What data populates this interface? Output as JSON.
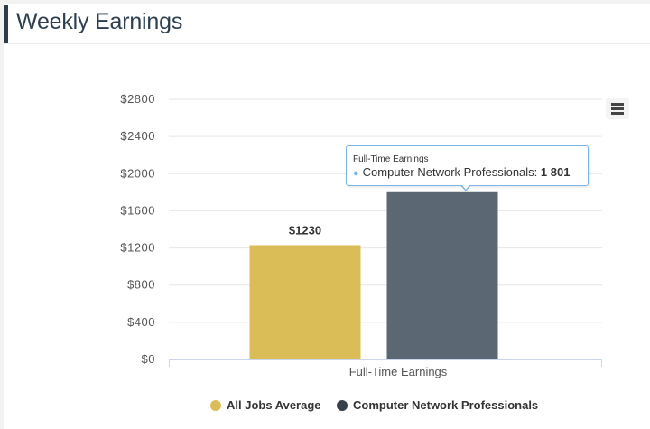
{
  "header": {
    "title": "Weekly Earnings"
  },
  "menu": {
    "icon": "hamburger-menu-icon"
  },
  "chart_data": {
    "type": "bar",
    "categories": [
      "Full-Time Earnings"
    ],
    "series": [
      {
        "name": "All Jobs Average",
        "values": [
          1230
        ],
        "color": "#dbbd58",
        "data_label": "$1230"
      },
      {
        "name": "Computer Network Professionals",
        "values": [
          1801
        ],
        "color": "#5b6873"
      }
    ],
    "yticks": [
      "$0",
      "$400",
      "$800",
      "$1200",
      "$1600",
      "$2000",
      "$2400",
      "$2800"
    ],
    "ylim": [
      0,
      2800
    ],
    "xlabel": "",
    "ylabel": "",
    "grid": true,
    "legend": "bottom-center"
  },
  "tooltip": {
    "header": "Full-Time Earnings",
    "series_name": "Computer Network Professionals:",
    "value": "1 801",
    "border_color": "#7cb5ec"
  },
  "legend": {
    "items": [
      {
        "label": "All Jobs Average",
        "color": "#dbbd58"
      },
      {
        "label": "Computer Network Professionals",
        "color": "#34404a"
      }
    ]
  }
}
